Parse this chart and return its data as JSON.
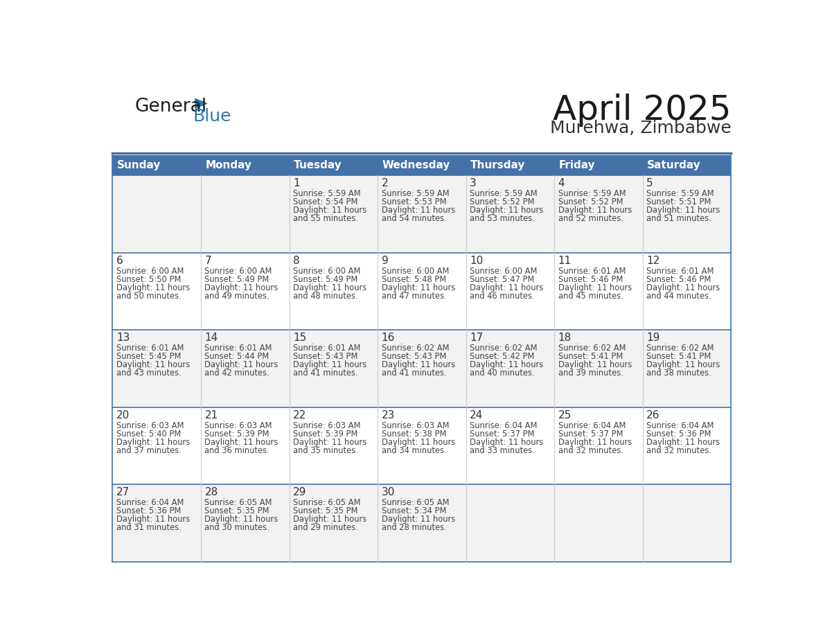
{
  "title": "April 2025",
  "subtitle": "Murehwa, Zimbabwe",
  "days_of_week": [
    "Sunday",
    "Monday",
    "Tuesday",
    "Wednesday",
    "Thursday",
    "Friday",
    "Saturday"
  ],
  "header_bg": "#4472a8",
  "header_text": "#ffffff",
  "grid_line_color": "#4472a8",
  "text_color": "#444444",
  "day_num_color": "#333333",
  "logo_general_color": "#1a1a1a",
  "logo_blue_color": "#2a7ab5",
  "calendar_data": [
    [
      null,
      null,
      {
        "day": 1,
        "sunrise": "5:59 AM",
        "sunset": "5:54 PM",
        "daylight": "11 hours and 55 minutes"
      },
      {
        "day": 2,
        "sunrise": "5:59 AM",
        "sunset": "5:53 PM",
        "daylight": "11 hours and 54 minutes"
      },
      {
        "day": 3,
        "sunrise": "5:59 AM",
        "sunset": "5:52 PM",
        "daylight": "11 hours and 53 minutes"
      },
      {
        "day": 4,
        "sunrise": "5:59 AM",
        "sunset": "5:52 PM",
        "daylight": "11 hours and 52 minutes"
      },
      {
        "day": 5,
        "sunrise": "5:59 AM",
        "sunset": "5:51 PM",
        "daylight": "11 hours and 51 minutes"
      }
    ],
    [
      {
        "day": 6,
        "sunrise": "6:00 AM",
        "sunset": "5:50 PM",
        "daylight": "11 hours and 50 minutes"
      },
      {
        "day": 7,
        "sunrise": "6:00 AM",
        "sunset": "5:49 PM",
        "daylight": "11 hours and 49 minutes"
      },
      {
        "day": 8,
        "sunrise": "6:00 AM",
        "sunset": "5:49 PM",
        "daylight": "11 hours and 48 minutes"
      },
      {
        "day": 9,
        "sunrise": "6:00 AM",
        "sunset": "5:48 PM",
        "daylight": "11 hours and 47 minutes"
      },
      {
        "day": 10,
        "sunrise": "6:00 AM",
        "sunset": "5:47 PM",
        "daylight": "11 hours and 46 minutes"
      },
      {
        "day": 11,
        "sunrise": "6:01 AM",
        "sunset": "5:46 PM",
        "daylight": "11 hours and 45 minutes"
      },
      {
        "day": 12,
        "sunrise": "6:01 AM",
        "sunset": "5:46 PM",
        "daylight": "11 hours and 44 minutes"
      }
    ],
    [
      {
        "day": 13,
        "sunrise": "6:01 AM",
        "sunset": "5:45 PM",
        "daylight": "11 hours and 43 minutes"
      },
      {
        "day": 14,
        "sunrise": "6:01 AM",
        "sunset": "5:44 PM",
        "daylight": "11 hours and 42 minutes"
      },
      {
        "day": 15,
        "sunrise": "6:01 AM",
        "sunset": "5:43 PM",
        "daylight": "11 hours and 41 minutes"
      },
      {
        "day": 16,
        "sunrise": "6:02 AM",
        "sunset": "5:43 PM",
        "daylight": "11 hours and 41 minutes"
      },
      {
        "day": 17,
        "sunrise": "6:02 AM",
        "sunset": "5:42 PM",
        "daylight": "11 hours and 40 minutes"
      },
      {
        "day": 18,
        "sunrise": "6:02 AM",
        "sunset": "5:41 PM",
        "daylight": "11 hours and 39 minutes"
      },
      {
        "day": 19,
        "sunrise": "6:02 AM",
        "sunset": "5:41 PM",
        "daylight": "11 hours and 38 minutes"
      }
    ],
    [
      {
        "day": 20,
        "sunrise": "6:03 AM",
        "sunset": "5:40 PM",
        "daylight": "11 hours and 37 minutes"
      },
      {
        "day": 21,
        "sunrise": "6:03 AM",
        "sunset": "5:39 PM",
        "daylight": "11 hours and 36 minutes"
      },
      {
        "day": 22,
        "sunrise": "6:03 AM",
        "sunset": "5:39 PM",
        "daylight": "11 hours and 35 minutes"
      },
      {
        "day": 23,
        "sunrise": "6:03 AM",
        "sunset": "5:38 PM",
        "daylight": "11 hours and 34 minutes"
      },
      {
        "day": 24,
        "sunrise": "6:04 AM",
        "sunset": "5:37 PM",
        "daylight": "11 hours and 33 minutes"
      },
      {
        "day": 25,
        "sunrise": "6:04 AM",
        "sunset": "5:37 PM",
        "daylight": "11 hours and 32 minutes"
      },
      {
        "day": 26,
        "sunrise": "6:04 AM",
        "sunset": "5:36 PM",
        "daylight": "11 hours and 32 minutes"
      }
    ],
    [
      {
        "day": 27,
        "sunrise": "6:04 AM",
        "sunset": "5:36 PM",
        "daylight": "11 hours and 31 minutes"
      },
      {
        "day": 28,
        "sunrise": "6:05 AM",
        "sunset": "5:35 PM",
        "daylight": "11 hours and 30 minutes"
      },
      {
        "day": 29,
        "sunrise": "6:05 AM",
        "sunset": "5:35 PM",
        "daylight": "11 hours and 29 minutes"
      },
      {
        "day": 30,
        "sunrise": "6:05 AM",
        "sunset": "5:34 PM",
        "daylight": "11 hours and 28 minutes"
      },
      null,
      null,
      null
    ]
  ]
}
